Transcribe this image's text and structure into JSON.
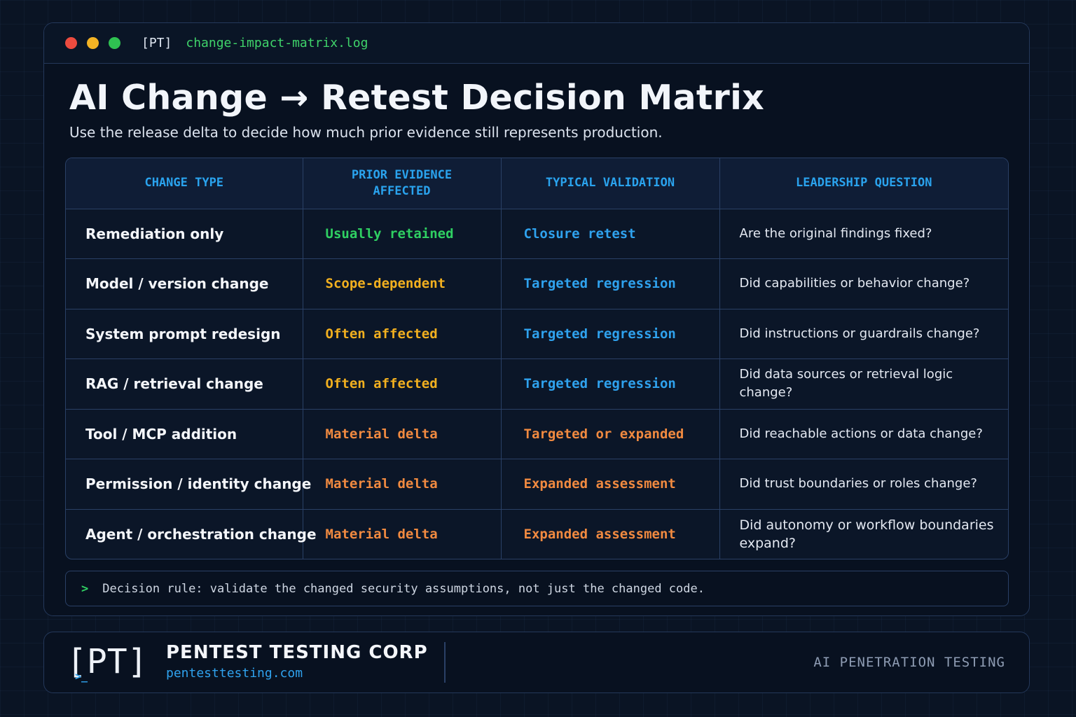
{
  "window": {
    "tag": "[PT]",
    "filename": "change-impact-matrix.log"
  },
  "header": {
    "title": "AI Change → Retest Decision Matrix",
    "subtitle": "Use the release delta to decide how much prior evidence still represents production."
  },
  "table": {
    "columns": [
      "CHANGE TYPE",
      "PRIOR EVIDENCE AFFECTED",
      "TYPICAL VALIDATION",
      "LEADERSHIP QUESTION"
    ],
    "rows": [
      {
        "type": "Remediation only",
        "evidence": "Usually retained",
        "validation": "Closure retest",
        "question": "Are the original findings fixed?"
      },
      {
        "type": "Model / version change",
        "evidence": "Scope-dependent",
        "validation": "Targeted regression",
        "question": "Did capabilities or behavior change?"
      },
      {
        "type": "System prompt redesign",
        "evidence": "Often affected",
        "validation": "Targeted regression",
        "question": "Did instructions or guardrails change?"
      },
      {
        "type": "RAG / retrieval change",
        "evidence": "Often affected",
        "validation": "Targeted regression",
        "question": "Did data sources or retrieval logic change?"
      },
      {
        "type": "Tool / MCP addition",
        "evidence": "Material delta",
        "validation": "Targeted or expanded",
        "question": "Did reachable actions or data change?"
      },
      {
        "type": "Permission / identity change",
        "evidence": "Material delta",
        "validation": "Expanded assessment",
        "question": "Did trust boundaries or roles change?"
      },
      {
        "type": "Agent / orchestration change",
        "evidence": "Material delta",
        "validation": "Expanded assessment",
        "question": "Did autonomy or workflow boundaries expand?"
      }
    ]
  },
  "rule": {
    "prompt": ">",
    "text": "Decision rule:  validate the changed security assumptions, not just the changed code."
  },
  "footer": {
    "logo_text": "[PT]",
    "logo_prompt": ">_",
    "company": "PENTEST TESTING CORP",
    "url": "pentesttesting.com",
    "tagline": "AI PENETRATION TESTING"
  },
  "colors": {
    "green": "#2fd062",
    "amber": "#f2b01f",
    "orange": "#f18a40",
    "blue": "#2fa2ee"
  }
}
